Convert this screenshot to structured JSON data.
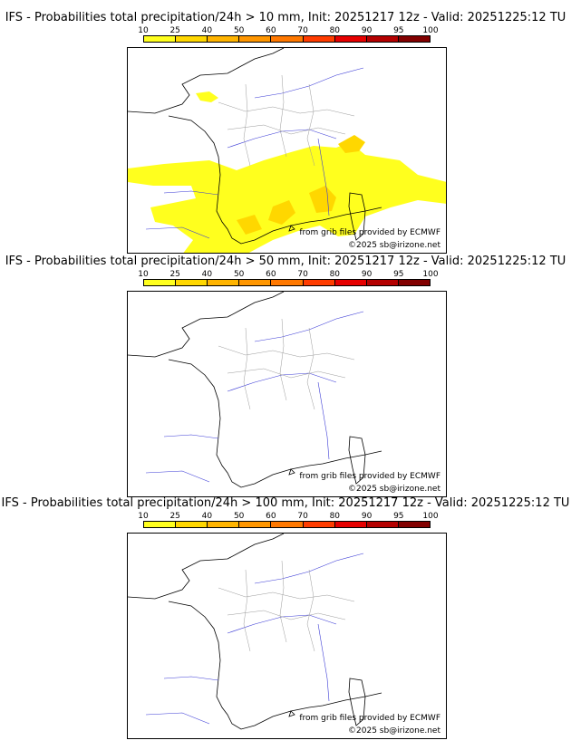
{
  "legend": {
    "ticks": [
      "10",
      "25",
      "40",
      "50",
      "60",
      "70",
      "80",
      "90",
      "95",
      "100"
    ],
    "colors": [
      "#ffff1e",
      "#ffd700",
      "#ffb400",
      "#ff9600",
      "#ff7800",
      "#ff3c00",
      "#e60000",
      "#b40000",
      "#820000",
      "#5a0000"
    ]
  },
  "credits": {
    "source": "from grib files provided by ECMWF",
    "copyright": "©2025 sb@irizone.net"
  },
  "panels": [
    {
      "title": "IFS - Probabilities total precipitation/24h > 10 mm, Init: 20251217 12z - Valid: 20251225:12 TU"
    },
    {
      "title": "IFS - Probabilities total precipitation/24h > 50 mm, Init: 20251217 12z - Valid: 20251225:12 TU"
    },
    {
      "title": "IFS - Probabilities total precipitation/24h > 100 mm, Init: 20251217 12z - Valid: 20251225:12 TU"
    }
  ]
}
